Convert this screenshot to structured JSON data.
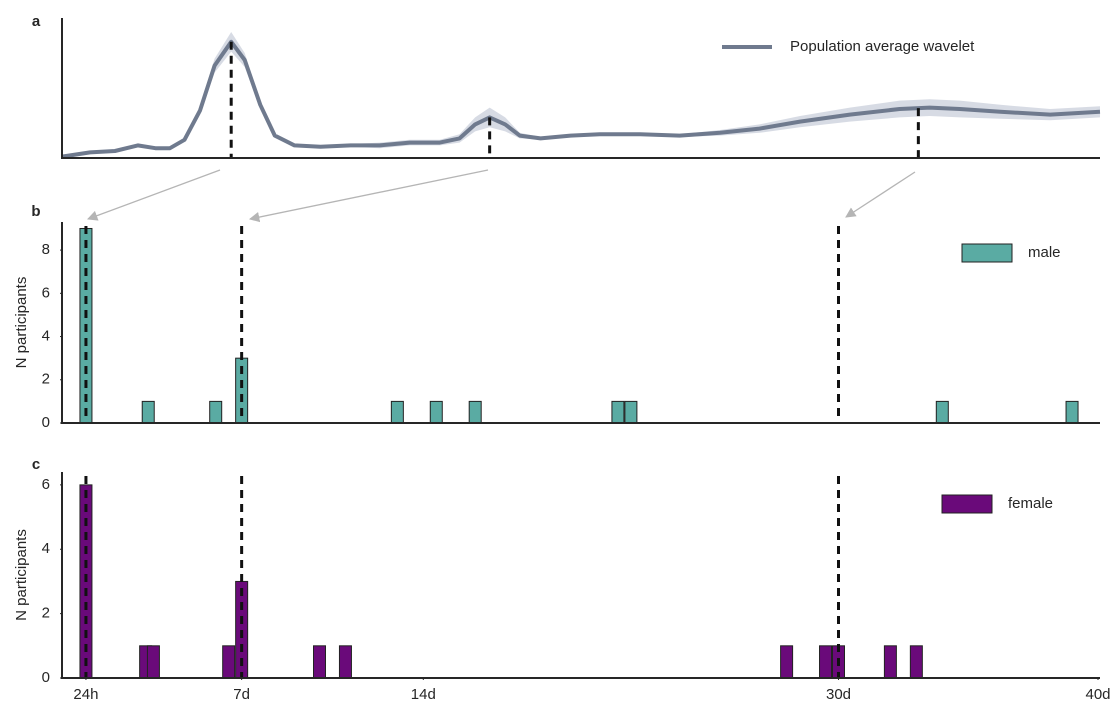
{
  "chart_data": [
    {
      "type": "line",
      "panel_label": "a",
      "legend": "upper right",
      "xlim": [
        0,
        100
      ],
      "ylim": [
        0,
        1
      ],
      "x": [
        0,
        2.7,
        5.1,
        7.3,
        9,
        10.4,
        11.8,
        13.3,
        14.7,
        16.3,
        17.6,
        19.1,
        20.5,
        22.4,
        24.9,
        27.8,
        30.6,
        33.5,
        36.4,
        38.3,
        39.8,
        41.2,
        42.7,
        44.1,
        46.1,
        49,
        51.8,
        55.7,
        59.5,
        63.4,
        67.2,
        71.1,
        75.9,
        80.7,
        83.6,
        86.5,
        90.4,
        95.2,
        100
      ],
      "series": [
        {
          "name": "Population average wavelet",
          "color": "#6f7a8e",
          "band_color": "#cdd2dd",
          "values": [
            0.01,
            0.04,
            0.05,
            0.09,
            0.07,
            0.07,
            0.13,
            0.34,
            0.66,
            0.83,
            0.7,
            0.38,
            0.16,
            0.09,
            0.08,
            0.09,
            0.09,
            0.11,
            0.11,
            0.14,
            0.24,
            0.29,
            0.24,
            0.16,
            0.14,
            0.16,
            0.17,
            0.17,
            0.16,
            0.18,
            0.21,
            0.26,
            0.31,
            0.35,
            0.36,
            0.35,
            0.33,
            0.31,
            0.33
          ],
          "band_low": [
            0,
            0.03,
            0.04,
            0.08,
            0.06,
            0.06,
            0.12,
            0.31,
            0.61,
            0.76,
            0.65,
            0.35,
            0.15,
            0.08,
            0.07,
            0.08,
            0.07,
            0.09,
            0.09,
            0.11,
            0.19,
            0.22,
            0.19,
            0.14,
            0.13,
            0.15,
            0.16,
            0.16,
            0.15,
            0.16,
            0.18,
            0.22,
            0.26,
            0.29,
            0.3,
            0.29,
            0.28,
            0.27,
            0.29
          ],
          "band_high": [
            0.02,
            0.05,
            0.06,
            0.1,
            0.08,
            0.08,
            0.14,
            0.37,
            0.71,
            0.9,
            0.75,
            0.41,
            0.17,
            0.1,
            0.09,
            0.1,
            0.11,
            0.13,
            0.13,
            0.17,
            0.29,
            0.36,
            0.29,
            0.18,
            0.15,
            0.17,
            0.18,
            0.18,
            0.17,
            0.2,
            0.24,
            0.3,
            0.36,
            0.41,
            0.42,
            0.41,
            0.38,
            0.35,
            0.37
          ]
        }
      ],
      "vlines": [
        16.3,
        41.2,
        82.5
      ]
    },
    {
      "type": "bar",
      "panel_label": "b",
      "y_label": "N participants",
      "legend": "upper right",
      "xlim": [
        0,
        40
      ],
      "ylim": [
        0,
        9.3
      ],
      "yticks": [
        0,
        2,
        4,
        6,
        8
      ],
      "x": [
        1,
        3.4,
        6,
        7,
        13,
        14.5,
        16,
        21.5,
        22,
        34,
        39
      ],
      "series": [
        {
          "name": "male",
          "color": "#5aaba3",
          "values": [
            9,
            1,
            1,
            3,
            1,
            1,
            1,
            1,
            1,
            1,
            1
          ]
        }
      ],
      "vlines": [
        1,
        7,
        30
      ]
    },
    {
      "type": "bar",
      "panel_label": "c",
      "y_label": "N participants",
      "legend": "upper right",
      "xlim": [
        0,
        40
      ],
      "ylim": [
        0,
        6.4
      ],
      "yticks": [
        0,
        2,
        4,
        6
      ],
      "xticks": [
        {
          "value": 1,
          "label": "24h"
        },
        {
          "value": 7,
          "label": "7d"
        },
        {
          "value": 14,
          "label": "14d"
        },
        {
          "value": 30,
          "label": "30d"
        },
        {
          "value": 40,
          "label": "40d"
        }
      ],
      "x": [
        1,
        3.3,
        3.6,
        6.5,
        7,
        10,
        11,
        28,
        29.5,
        30,
        32,
        33
      ],
      "series": [
        {
          "name": "female",
          "color": "#6a0a7a",
          "values": [
            6,
            1,
            1,
            1,
            3,
            1,
            1,
            1,
            1,
            1,
            1,
            1
          ]
        }
      ],
      "vlines": [
        1,
        7,
        30
      ]
    }
  ]
}
